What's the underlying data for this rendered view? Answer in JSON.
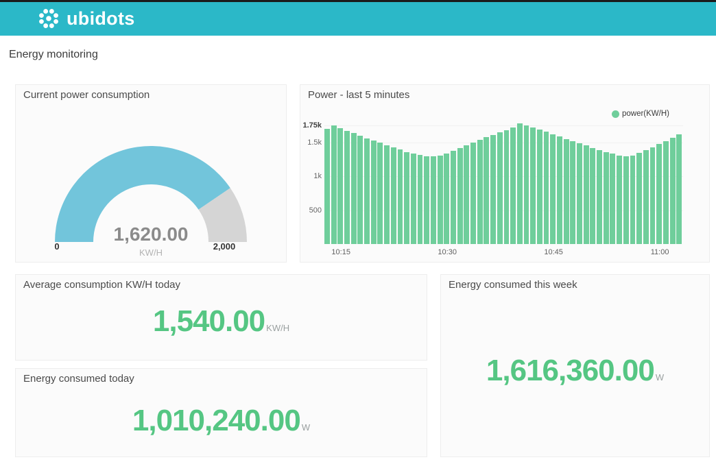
{
  "header": {
    "brand": "ubidots"
  },
  "page": {
    "title": "Energy monitoring"
  },
  "colors": {
    "header_teal": "#2bb8c8",
    "bar_green": "#6fce9b",
    "value_green": "#55c683",
    "gauge_blue": "#72c5db",
    "gauge_track": "#d5d5d5"
  },
  "widgets": {
    "gauge": {
      "title": "Current power consumption",
      "value": 1620,
      "min": 0,
      "max": 2000,
      "value_display": "1,620.00",
      "unit": "KW/H",
      "min_label": "0",
      "max_label": "2,000"
    },
    "stats": [
      {
        "title": "Average consumption KW/H today",
        "value": "1,540.00",
        "unit": "KW/H"
      },
      {
        "title": "Energy consumed today",
        "value": "1,010,240.00",
        "unit": "W"
      },
      {
        "title": "Energy consumed this week",
        "value": "1,616,360.00",
        "unit": "W"
      }
    ]
  },
  "chart_data": {
    "type": "bar",
    "title": "Power - last 5 minutes",
    "legend": [
      {
        "name": "power(KW/H)",
        "color": "#6fce9b"
      }
    ],
    "legend_position": "top-right",
    "grid": true,
    "ylim": [
      0,
      1790
    ],
    "y_ticks": [
      {
        "value": 500,
        "label": "500",
        "bold": false
      },
      {
        "value": 1000,
        "label": "1k",
        "bold": false
      },
      {
        "value": 1500,
        "label": "1.5k",
        "bold": false
      },
      {
        "value": 1750,
        "label": "1.75k",
        "bold": true
      }
    ],
    "x_tick_labels": [
      "10:15",
      "10:30",
      "10:45",
      "11:00"
    ],
    "x_tick_bar_indices": [
      2,
      18,
      34,
      50
    ],
    "values": [
      1700,
      1750,
      1705,
      1670,
      1635,
      1600,
      1555,
      1525,
      1495,
      1460,
      1425,
      1395,
      1360,
      1335,
      1315,
      1295,
      1290,
      1310,
      1340,
      1375,
      1415,
      1455,
      1500,
      1540,
      1575,
      1610,
      1645,
      1680,
      1720,
      1780,
      1750,
      1720,
      1690,
      1655,
      1620,
      1585,
      1550,
      1520,
      1490,
      1455,
      1420,
      1390,
      1360,
      1335,
      1310,
      1290,
      1310,
      1345,
      1385,
      1430,
      1475,
      1520,
      1565,
      1620
    ]
  }
}
